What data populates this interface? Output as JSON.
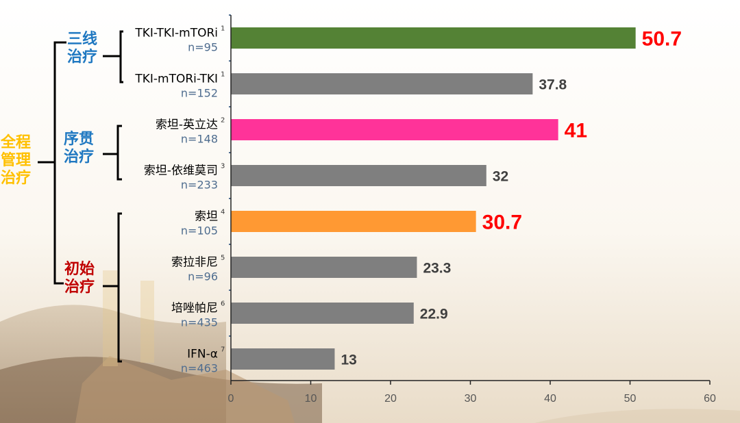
{
  "chart_data": {
    "type": "bar",
    "orientation": "horizontal",
    "categories": [
      {
        "label": "TKI-TKI-mTORi",
        "sup": "1",
        "n": "n=95"
      },
      {
        "label": "TKI-mTORi-TKI",
        "sup": "1",
        "n": "n=152"
      },
      {
        "label": "索坦-英立达",
        "sup": "2",
        "n": "n=148"
      },
      {
        "label": "索坦-依维莫司",
        "sup": "3",
        "n": "n=233"
      },
      {
        "label": "索坦",
        "sup": "4",
        "n": "n=105"
      },
      {
        "label": "索拉非尼",
        "sup": "5",
        "n": "n=96"
      },
      {
        "label": "培唑帕尼",
        "sup": "6",
        "n": "n=435"
      },
      {
        "label": "IFN-α",
        "sup": "7",
        "n": "n=463"
      }
    ],
    "values": [
      50.7,
      37.8,
      41,
      32,
      30.7,
      23.3,
      22.9,
      13
    ],
    "value_labels": [
      "50.7",
      "37.8",
      "41",
      "32",
      "30.7",
      "23.3",
      "22.9",
      "13"
    ],
    "bar_colors": [
      "#548235",
      "#7f7f7f",
      "#ff3399",
      "#7f7f7f",
      "#ff9933",
      "#7f7f7f",
      "#7f7f7f",
      "#7f7f7f"
    ],
    "label_colors": [
      "#ff0000",
      "#404040",
      "#ff0000",
      "#404040",
      "#ff0000",
      "#404040",
      "#404040",
      "#404040"
    ],
    "highlighted": [
      true,
      false,
      true,
      false,
      true,
      false,
      false,
      false
    ],
    "xlim": [
      0,
      60
    ],
    "xticks": [
      "0",
      "10",
      "20",
      "30",
      "40",
      "50",
      "60"
    ],
    "grid": false,
    "title": "",
    "xlabel": "",
    "ylabel": ""
  },
  "groups": {
    "third_line": {
      "line1": "三线",
      "line2": "治疗",
      "color": "#1f78c1"
    },
    "sequential": {
      "line1": "序贯",
      "line2": "治疗",
      "color": "#1f78c1"
    },
    "first_line": {
      "line1": "初始",
      "line2": "治疗",
      "color": "#c00000"
    },
    "whole_course": {
      "line1": "全程",
      "line2": "管理",
      "line3": "治疗",
      "color": "#ffc000"
    }
  }
}
